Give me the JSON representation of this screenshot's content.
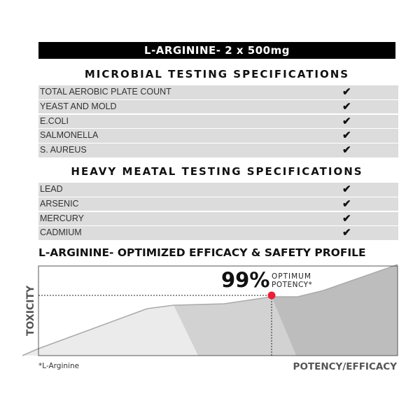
{
  "banner": "L-ARGININE- 2 x 500mg",
  "microbial": {
    "title": "MICROBIAL TESTING SPECIFICATIONS",
    "items": [
      "TOTAL AEROBIC PLATE COUNT",
      "YEAST AND MOLD",
      "E.COLI",
      "SALMONELLA",
      "S. AUREUS"
    ]
  },
  "heavy": {
    "title": "HEAVY MEATAL TESTING SPECIFICATIONS",
    "items": [
      "LEAD",
      "ARSENIC",
      "MERCURY",
      "CADMIUM"
    ]
  },
  "check_icon": "check-mark-icon",
  "chart": {
    "title": "L-ARGININE- OPTIMIZED EFFICACY & SAFETY PROFILE",
    "ylabel": "TOXICITY",
    "xlabel": "POTENCY/EFFICACY",
    "percent": "99%",
    "label1": "OPTIMUM",
    "label2": "POTENCY*",
    "footnote": "*L-Arginine",
    "marker_color": "#e8213a"
  }
}
